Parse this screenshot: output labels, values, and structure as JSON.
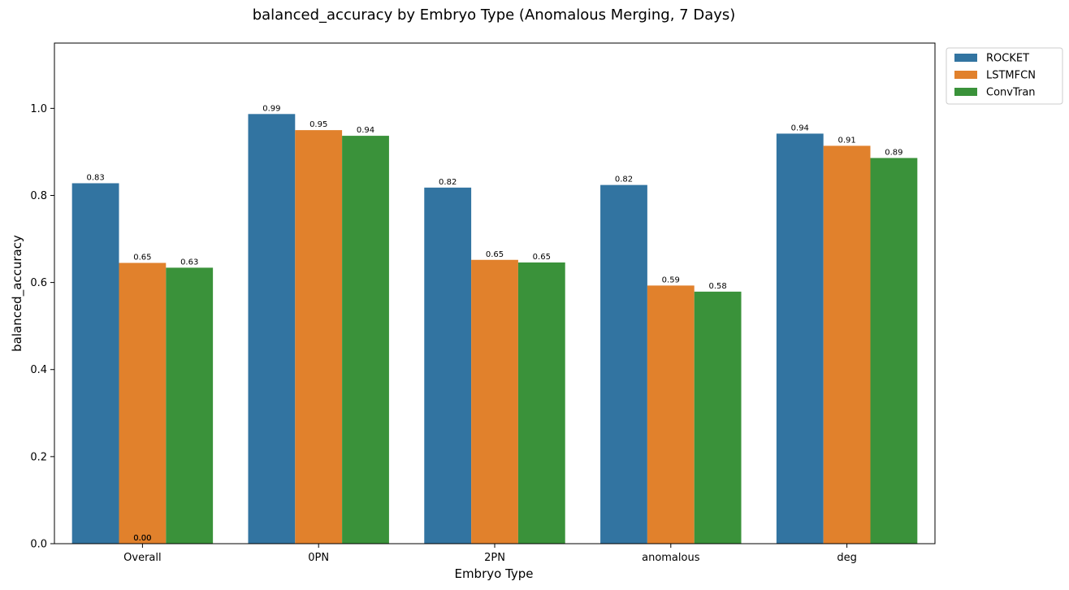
{
  "chart_data": {
    "type": "bar",
    "title": "balanced_accuracy by Embryo Type (Anomalous Merging, 7 Days)",
    "xlabel": "Embryo Type",
    "ylabel": "balanced_accuracy",
    "ylim": [
      0,
      1.15
    ],
    "yticks": [
      "0.0",
      "0.2",
      "0.4",
      "0.6",
      "0.8",
      "1.0"
    ],
    "categories": [
      "Overall",
      "0PN",
      "2PN",
      "anomalous",
      "deg"
    ],
    "series": [
      {
        "name": "ROCKET",
        "color": "#3274a1",
        "values": [
          0.828,
          0.987,
          0.818,
          0.824,
          0.942
        ],
        "labels": [
          "0.83",
          "0.99",
          "0.82",
          "0.82",
          "0.94"
        ]
      },
      {
        "name": "LSTMFCN",
        "color": "#e1812c",
        "values": [
          0.645,
          0.95,
          0.652,
          0.593,
          0.914
        ],
        "labels": [
          "0.65",
          "0.95",
          "0.65",
          "0.59",
          "0.91"
        ]
      },
      {
        "name": "ConvTran",
        "color": "#3a923a",
        "values": [
          0.634,
          0.937,
          0.646,
          0.579,
          0.886
        ],
        "labels": [
          "0.63",
          "0.94",
          "0.65",
          "0.58",
          "0.89"
        ]
      }
    ],
    "extra_labels": [
      {
        "category": "Overall",
        "text": "0.00"
      },
      {
        "category": "Overall",
        "text": "0.00"
      }
    ],
    "grid": false,
    "legend_position": "outside-top-right"
  }
}
